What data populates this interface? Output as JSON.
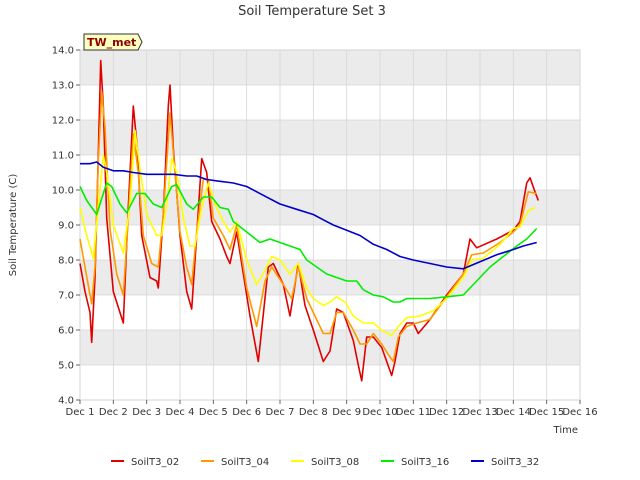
{
  "chart_data": {
    "type": "line",
    "title": "Soil Temperature Set 3",
    "xlabel": "Time",
    "ylabel": "Soil Temperature (C)",
    "site_label": "TW_met",
    "ylim": [
      4.0,
      14.0
    ],
    "xlim": [
      0,
      15
    ],
    "yticks": [
      "4.0",
      "5.0",
      "6.0",
      "7.0",
      "8.0",
      "9.0",
      "10.0",
      "11.0",
      "12.0",
      "13.0",
      "14.0"
    ],
    "xticks": [
      "Dec 1",
      "Dec 2",
      "Dec 3",
      "Dec 4",
      "Dec 5",
      "Dec 6",
      "Dec 7",
      "Dec 8",
      "Dec 9",
      "Dec 10",
      "Dec 11",
      "Dec 12",
      "Dec 13",
      "Dec 14",
      "Dec 15",
      "Dec 16"
    ],
    "grid": true,
    "legend_position": "bottom",
    "series": [
      {
        "name": "SoilT3_02",
        "color": "#e00000",
        "points": [
          [
            0.0,
            7.9
          ],
          [
            0.15,
            7.1
          ],
          [
            0.3,
            6.5
          ],
          [
            0.35,
            5.65
          ],
          [
            0.45,
            7.5
          ],
          [
            0.55,
            11.0
          ],
          [
            0.62,
            13.7
          ],
          [
            0.7,
            12.4
          ],
          [
            0.8,
            9.2
          ],
          [
            1.0,
            7.1
          ],
          [
            1.3,
            6.2
          ],
          [
            1.45,
            9.5
          ],
          [
            1.6,
            12.4
          ],
          [
            1.72,
            11.2
          ],
          [
            1.85,
            8.7
          ],
          [
            2.1,
            7.5
          ],
          [
            2.3,
            7.4
          ],
          [
            2.35,
            7.2
          ],
          [
            2.5,
            9.3
          ],
          [
            2.65,
            12.4
          ],
          [
            2.7,
            13.0
          ],
          [
            2.8,
            11.2
          ],
          [
            3.0,
            8.7
          ],
          [
            3.2,
            7.1
          ],
          [
            3.35,
            6.6
          ],
          [
            3.5,
            8.7
          ],
          [
            3.65,
            10.9
          ],
          [
            3.8,
            10.5
          ],
          [
            3.95,
            9.1
          ],
          [
            4.2,
            8.6
          ],
          [
            4.4,
            8.1
          ],
          [
            4.5,
            7.9
          ],
          [
            4.7,
            8.8
          ],
          [
            5.1,
            6.4
          ],
          [
            5.35,
            5.1
          ],
          [
            5.65,
            7.8
          ],
          [
            5.8,
            7.9
          ],
          [
            6.1,
            7.3
          ],
          [
            6.3,
            6.4
          ],
          [
            6.55,
            7.9
          ],
          [
            6.75,
            6.7
          ],
          [
            7.0,
            6.0
          ],
          [
            7.3,
            5.1
          ],
          [
            7.5,
            5.4
          ],
          [
            7.7,
            6.6
          ],
          [
            7.9,
            6.5
          ],
          [
            8.2,
            5.7
          ],
          [
            8.35,
            5.0
          ],
          [
            8.45,
            4.55
          ],
          [
            8.6,
            5.8
          ],
          [
            8.8,
            5.8
          ],
          [
            9.05,
            5.5
          ],
          [
            9.2,
            5.1
          ],
          [
            9.35,
            4.7
          ],
          [
            9.45,
            5.1
          ],
          [
            9.6,
            5.9
          ],
          [
            9.8,
            6.2
          ],
          [
            10.0,
            6.2
          ],
          [
            10.15,
            5.9
          ],
          [
            10.5,
            6.3
          ],
          [
            11.0,
            7.0
          ],
          [
            11.5,
            7.6
          ],
          [
            11.7,
            8.6
          ],
          [
            11.9,
            8.35
          ],
          [
            12.5,
            8.6
          ],
          [
            13.0,
            8.85
          ],
          [
            13.2,
            9.1
          ],
          [
            13.4,
            10.2
          ],
          [
            13.5,
            10.35
          ],
          [
            13.65,
            9.95
          ],
          [
            13.75,
            9.7
          ]
        ]
      },
      {
        "name": "SoilT3_04",
        "color": "#ff9900",
        "points": [
          [
            0.0,
            8.6
          ],
          [
            0.15,
            7.8
          ],
          [
            0.3,
            7.0
          ],
          [
            0.35,
            6.75
          ],
          [
            0.45,
            7.8
          ],
          [
            0.55,
            10.8
          ],
          [
            0.65,
            12.8
          ],
          [
            0.75,
            11.8
          ],
          [
            0.9,
            8.9
          ],
          [
            1.1,
            7.6
          ],
          [
            1.3,
            7.0
          ],
          [
            1.45,
            9.2
          ],
          [
            1.6,
            11.6
          ],
          [
            1.75,
            10.5
          ],
          [
            1.9,
            8.7
          ],
          [
            2.15,
            7.9
          ],
          [
            2.35,
            7.8
          ],
          [
            2.5,
            9.3
          ],
          [
            2.7,
            12.2
          ],
          [
            2.85,
            10.5
          ],
          [
            3.0,
            8.8
          ],
          [
            3.2,
            7.8
          ],
          [
            3.35,
            7.3
          ],
          [
            3.5,
            8.8
          ],
          [
            3.7,
            10.3
          ],
          [
            3.85,
            10.3
          ],
          [
            4.0,
            9.2
          ],
          [
            4.3,
            8.7
          ],
          [
            4.5,
            8.3
          ],
          [
            4.7,
            9.0
          ],
          [
            5.0,
            7.2
          ],
          [
            5.3,
            6.1
          ],
          [
            5.55,
            7.4
          ],
          [
            5.75,
            7.8
          ],
          [
            6.1,
            7.3
          ],
          [
            6.35,
            6.9
          ],
          [
            6.55,
            7.8
          ],
          [
            6.8,
            6.9
          ],
          [
            7.0,
            6.5
          ],
          [
            7.3,
            5.9
          ],
          [
            7.5,
            5.9
          ],
          [
            7.7,
            6.5
          ],
          [
            7.9,
            6.5
          ],
          [
            8.2,
            6.0
          ],
          [
            8.4,
            5.6
          ],
          [
            8.6,
            5.6
          ],
          [
            8.8,
            5.9
          ],
          [
            9.05,
            5.6
          ],
          [
            9.25,
            5.3
          ],
          [
            9.4,
            5.1
          ],
          [
            9.55,
            5.8
          ],
          [
            9.8,
            6.1
          ],
          [
            10.1,
            6.2
          ],
          [
            10.5,
            6.3
          ],
          [
            11.0,
            6.95
          ],
          [
            11.5,
            7.6
          ],
          [
            11.75,
            8.15
          ],
          [
            12.1,
            8.2
          ],
          [
            12.6,
            8.5
          ],
          [
            13.0,
            8.8
          ],
          [
            13.2,
            9.0
          ],
          [
            13.45,
            9.95
          ],
          [
            13.7,
            9.9
          ]
        ]
      },
      {
        "name": "SoilT3_08",
        "color": "#ffff00",
        "points": [
          [
            0.0,
            9.5
          ],
          [
            0.2,
            8.7
          ],
          [
            0.4,
            8.05
          ],
          [
            0.55,
            9.5
          ],
          [
            0.7,
            11.0
          ],
          [
            0.8,
            10.5
          ],
          [
            1.0,
            9.0
          ],
          [
            1.3,
            8.2
          ],
          [
            1.5,
            9.6
          ],
          [
            1.65,
            11.7
          ],
          [
            1.8,
            10.6
          ],
          [
            2.0,
            9.3
          ],
          [
            2.3,
            8.7
          ],
          [
            2.45,
            8.7
          ],
          [
            2.6,
            9.6
          ],
          [
            2.75,
            10.9
          ],
          [
            2.9,
            10.5
          ],
          [
            3.1,
            9.2
          ],
          [
            3.3,
            8.4
          ],
          [
            3.45,
            8.4
          ],
          [
            3.65,
            9.5
          ],
          [
            3.85,
            10.2
          ],
          [
            4.05,
            9.6
          ],
          [
            4.3,
            9.1
          ],
          [
            4.5,
            8.8
          ],
          [
            4.7,
            9.1
          ],
          [
            5.0,
            8.0
          ],
          [
            5.3,
            7.3
          ],
          [
            5.55,
            7.7
          ],
          [
            5.75,
            8.1
          ],
          [
            6.0,
            8.0
          ],
          [
            6.3,
            7.6
          ],
          [
            6.55,
            7.9
          ],
          [
            6.8,
            7.2
          ],
          [
            7.0,
            6.9
          ],
          [
            7.3,
            6.7
          ],
          [
            7.5,
            6.8
          ],
          [
            7.7,
            6.95
          ],
          [
            7.95,
            6.8
          ],
          [
            8.2,
            6.4
          ],
          [
            8.5,
            6.2
          ],
          [
            8.8,
            6.2
          ],
          [
            9.05,
            6.0
          ],
          [
            9.35,
            5.85
          ],
          [
            9.55,
            6.1
          ],
          [
            9.8,
            6.35
          ],
          [
            10.2,
            6.4
          ],
          [
            10.6,
            6.55
          ],
          [
            11.0,
            6.9
          ],
          [
            11.5,
            7.5
          ],
          [
            11.75,
            8.0
          ],
          [
            12.1,
            8.05
          ],
          [
            12.6,
            8.45
          ],
          [
            13.0,
            8.9
          ],
          [
            13.2,
            8.95
          ],
          [
            13.45,
            9.4
          ],
          [
            13.65,
            9.5
          ]
        ]
      },
      {
        "name": "SoilT3_16",
        "color": "#00ee00",
        "points": [
          [
            0.0,
            10.1
          ],
          [
            0.2,
            9.7
          ],
          [
            0.5,
            9.3
          ],
          [
            0.8,
            10.2
          ],
          [
            0.95,
            10.1
          ],
          [
            1.2,
            9.6
          ],
          [
            1.4,
            9.35
          ],
          [
            1.7,
            9.9
          ],
          [
            1.95,
            9.9
          ],
          [
            2.2,
            9.6
          ],
          [
            2.45,
            9.5
          ],
          [
            2.75,
            10.1
          ],
          [
            2.9,
            10.15
          ],
          [
            3.2,
            9.6
          ],
          [
            3.4,
            9.45
          ],
          [
            3.7,
            9.8
          ],
          [
            3.95,
            9.8
          ],
          [
            4.2,
            9.5
          ],
          [
            4.45,
            9.45
          ],
          [
            4.6,
            9.1
          ],
          [
            5.0,
            8.8
          ],
          [
            5.4,
            8.5
          ],
          [
            5.7,
            8.6
          ],
          [
            6.0,
            8.5
          ],
          [
            6.3,
            8.4
          ],
          [
            6.6,
            8.3
          ],
          [
            6.8,
            8.0
          ],
          [
            7.1,
            7.8
          ],
          [
            7.4,
            7.6
          ],
          [
            7.7,
            7.5
          ],
          [
            8.0,
            7.4
          ],
          [
            8.3,
            7.4
          ],
          [
            8.5,
            7.15
          ],
          [
            8.8,
            7.0
          ],
          [
            9.1,
            6.95
          ],
          [
            9.4,
            6.8
          ],
          [
            9.6,
            6.8
          ],
          [
            9.8,
            6.9
          ],
          [
            10.5,
            6.9
          ],
          [
            11.0,
            6.95
          ],
          [
            11.5,
            7.0
          ],
          [
            11.9,
            7.4
          ],
          [
            12.3,
            7.8
          ],
          [
            12.7,
            8.1
          ],
          [
            13.1,
            8.4
          ],
          [
            13.4,
            8.6
          ],
          [
            13.7,
            8.9
          ]
        ]
      },
      {
        "name": "SoilT3_32",
        "color": "#0000cc",
        "points": [
          [
            0.0,
            10.75
          ],
          [
            0.3,
            10.75
          ],
          [
            0.5,
            10.8
          ],
          [
            0.7,
            10.65
          ],
          [
            1.0,
            10.55
          ],
          [
            1.3,
            10.55
          ],
          [
            1.6,
            10.5
          ],
          [
            2.0,
            10.45
          ],
          [
            2.4,
            10.45
          ],
          [
            2.8,
            10.45
          ],
          [
            3.2,
            10.4
          ],
          [
            3.5,
            10.4
          ],
          [
            3.8,
            10.3
          ],
          [
            4.2,
            10.25
          ],
          [
            4.6,
            10.2
          ],
          [
            5.0,
            10.1
          ],
          [
            5.5,
            9.85
          ],
          [
            6.0,
            9.6
          ],
          [
            6.5,
            9.45
          ],
          [
            7.0,
            9.3
          ],
          [
            7.3,
            9.15
          ],
          [
            7.6,
            9.0
          ],
          [
            8.0,
            8.85
          ],
          [
            8.4,
            8.7
          ],
          [
            8.8,
            8.45
          ],
          [
            9.2,
            8.3
          ],
          [
            9.6,
            8.1
          ],
          [
            10.0,
            8.0
          ],
          [
            10.5,
            7.9
          ],
          [
            11.0,
            7.8
          ],
          [
            11.5,
            7.75
          ],
          [
            12.0,
            7.95
          ],
          [
            12.5,
            8.15
          ],
          [
            13.0,
            8.3
          ],
          [
            13.3,
            8.4
          ],
          [
            13.7,
            8.5
          ]
        ]
      }
    ]
  }
}
